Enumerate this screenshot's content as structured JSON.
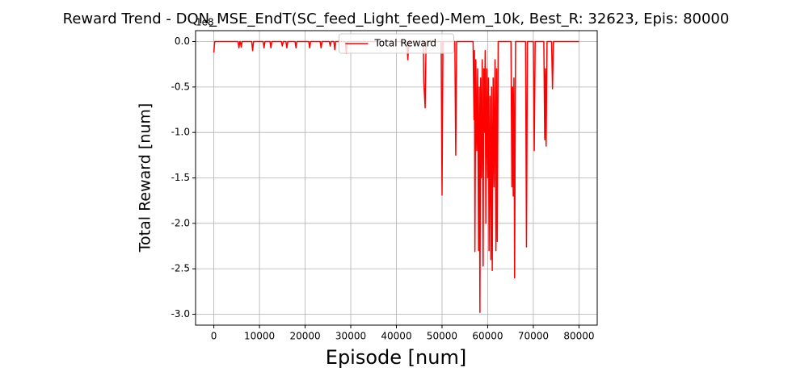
{
  "chart_data": {
    "type": "line",
    "title": "Reward Trend - DQN_MSE_EndT(SC_feed_Light_feed)-Mem_10k, Best_R: 32623, Epis: 80000",
    "x_label": "Episode [num]",
    "y_label": "Total Reward [num]",
    "y_offset_label": "1e8",
    "x": [
      0,
      200,
      5300,
      5500,
      5700,
      5800,
      6000,
      6200,
      8300,
      8500,
      8700,
      10800,
      11000,
      11200,
      12300,
      12500,
      12700,
      14800,
      15000,
      15200,
      15800,
      16000,
      16200,
      17800,
      18000,
      18200,
      20800,
      21000,
      21200,
      23300,
      23500,
      23700,
      25300,
      25500,
      25700,
      26300,
      26500,
      26700,
      28800,
      29000,
      29200,
      42300,
      42500,
      42700,
      45900,
      46000,
      46300,
      46500,
      49800,
      50000,
      50200,
      52800,
      53000,
      53200,
      56800,
      57000,
      57100,
      57200,
      57400,
      57600,
      57800,
      58000,
      58150,
      58300,
      58450,
      58600,
      58800,
      59000,
      59150,
      59300,
      59450,
      59600,
      59800,
      60000,
      60150,
      60300,
      60500,
      60700,
      60850,
      61000,
      61200,
      61400,
      61600,
      61800,
      61950,
      62100,
      62300,
      65100,
      65300,
      65450,
      65600,
      65750,
      65900,
      66100,
      68300,
      68500,
      68700,
      70000,
      70200,
      70400,
      72300,
      72500,
      72650,
      72800,
      73000,
      74000,
      74200,
      74400,
      80000
    ],
    "series": [
      {
        "name": "Total Reward",
        "color": "#ff0000",
        "values": [
          -0.12,
          0,
          0,
          -0.07,
          0,
          0,
          -0.06,
          0,
          0,
          -0.1,
          0,
          0,
          -0.07,
          0,
          0,
          -0.07,
          0,
          0,
          -0.05,
          0,
          0,
          -0.07,
          0,
          0,
          -0.07,
          0,
          0,
          -0.07,
          0,
          0,
          -0.07,
          0,
          0,
          -0.05,
          0,
          0,
          -0.09,
          0,
          0,
          -0.13,
          0,
          0,
          -0.2,
          0,
          0,
          -0.44,
          -0.73,
          0,
          0,
          -1.69,
          0,
          0,
          -1.25,
          0,
          0,
          -0.86,
          -0.1,
          -2.31,
          -0.2,
          -1.2,
          -0.3,
          -2.3,
          -0.5,
          -2.98,
          -0.4,
          -1.5,
          -0.2,
          -2.47,
          -0.3,
          -1.0,
          -0.1,
          -2.0,
          -0.3,
          -1.5,
          -0.4,
          -2.3,
          -0.6,
          -2.4,
          -0.5,
          -2.52,
          -0.4,
          -1.6,
          -0.2,
          -2.3,
          -0.3,
          -2.2,
          0,
          0,
          -1.6,
          -0.5,
          -1.7,
          -0.4,
          -2.6,
          0,
          0,
          -2.26,
          0,
          0,
          -1.2,
          0,
          0,
          -1.08,
          -0.3,
          -1.15,
          0,
          0,
          -0.52,
          0,
          0
        ]
      }
    ],
    "xlim": [
      -4000,
      84000
    ],
    "ylim": [
      -3.12,
      0.12
    ],
    "xticks": [
      0,
      10000,
      20000,
      30000,
      40000,
      50000,
      60000,
      70000,
      80000
    ],
    "yticks": [
      {
        "value": 0,
        "label": "0.0"
      },
      -0.5,
      {
        "value": -1,
        "label": "-1.0"
      },
      -1.5,
      {
        "value": -2,
        "label": "-2.0"
      },
      -2.5,
      {
        "value": -3,
        "label": "-3.0"
      }
    ],
    "grid": true,
    "legend": "upper center"
  }
}
